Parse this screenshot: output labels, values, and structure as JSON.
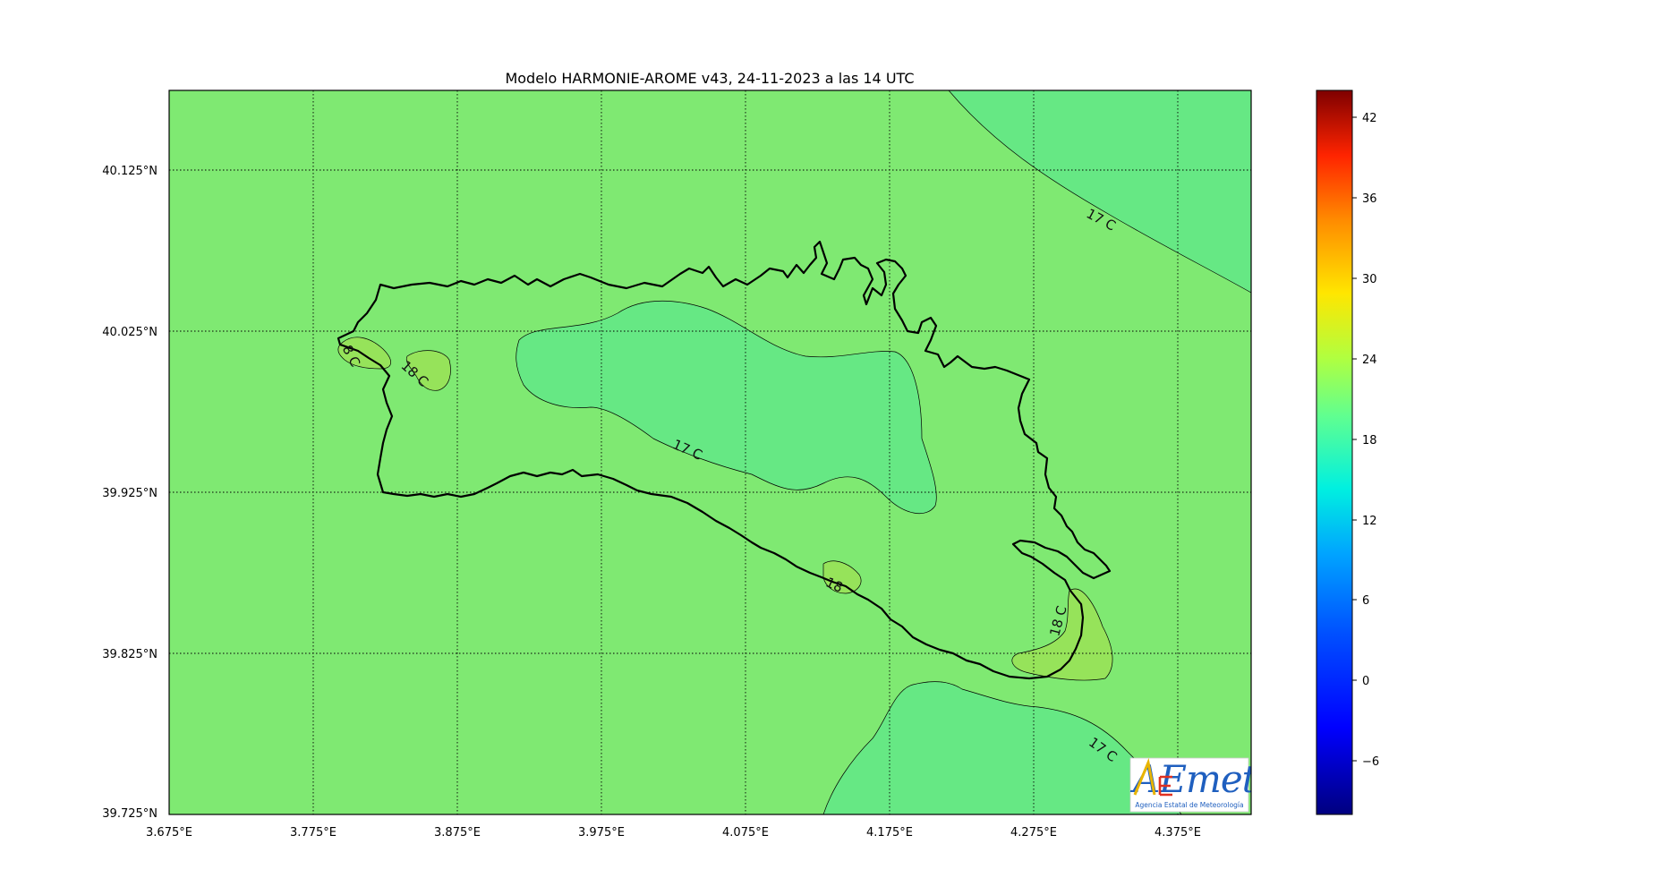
{
  "title": "Modelo HARMONIE-AROME v43, 24-11-2023 a las 14 UTC",
  "colors": {
    "field_base": "#7fe972",
    "field_17": "#66e884",
    "field_18": "#96e35a",
    "coast": "#000000",
    "grid": "#000000"
  },
  "lon_ticks": [
    "3.675°E",
    "3.775°E",
    "3.875°E",
    "3.975°E",
    "4.075°E",
    "4.175°E",
    "4.275°E",
    "4.375°E"
  ],
  "lat_ticks": [
    "40.125°N",
    "40.025°N",
    "39.925°N",
    "39.825°N",
    "39.725°N"
  ],
  "contour_labels": {
    "ne": "17 C",
    "center": "17 C",
    "se": "17 C",
    "west_a": "8 C",
    "west_b": "18 C",
    "south": "18",
    "east": "18 C"
  },
  "colorbar": {
    "ticks": [
      "42",
      "36",
      "30",
      "24",
      "18",
      "12",
      "6",
      "0",
      "−6"
    ]
  },
  "logo": {
    "text": "AEmet",
    "subtitle": "Agencia Estatal de Meteorología"
  }
}
